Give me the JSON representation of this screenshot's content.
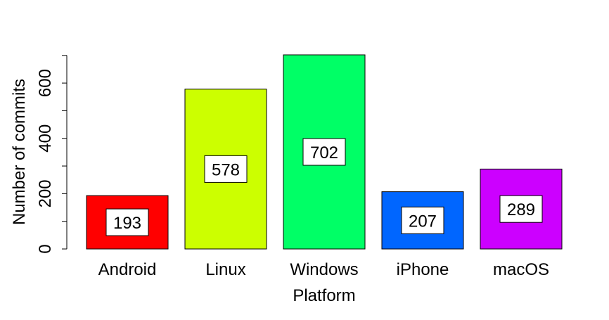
{
  "chart_data": {
    "type": "bar",
    "title": "",
    "xlabel": "Platform",
    "ylabel": "Number of commits",
    "categories": [
      "Android",
      "Linux",
      "Windows",
      "iPhone",
      "macOS"
    ],
    "values": [
      193,
      578,
      702,
      207,
      289
    ],
    "colors": [
      "#ff0000",
      "#ccff00",
      "#00ff66",
      "#0066ff",
      "#cc00ff"
    ],
    "ylim": [
      0,
      702
    ],
    "yticks_major": [
      0,
      200,
      400,
      600
    ],
    "yticks_minor": [
      100,
      300,
      500,
      700
    ],
    "grid": false,
    "legend": "none",
    "data_labels": true
  }
}
